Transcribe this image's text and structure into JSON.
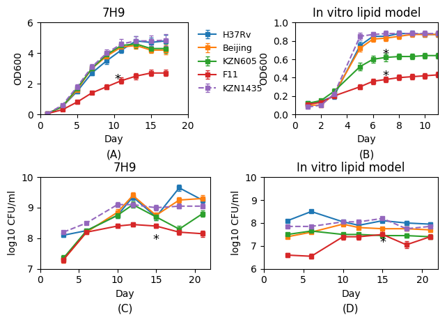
{
  "chart_data": [
    {
      "type": "line",
      "title": "7H9",
      "x_label": "Day",
      "y_label": "OD600",
      "panel_label": "(A)",
      "xlim": [
        0,
        20
      ],
      "ylim": [
        0,
        6
      ],
      "xticks": [
        0,
        5,
        10,
        15,
        20
      ],
      "yticks": [
        0,
        2,
        4,
        6
      ],
      "marker": "square",
      "legend": "upper left",
      "x": [
        1,
        3,
        5,
        7,
        9,
        11,
        13,
        15,
        17
      ],
      "series": [
        {
          "name": "H37Rv",
          "line_style": "solid",
          "values": [
            0.05,
            0.5,
            1.5,
            2.7,
            3.5,
            4.2,
            4.8,
            4.7,
            4.8
          ],
          "errors": [
            0.05,
            0.1,
            0.15,
            0.15,
            0.2,
            0.2,
            0.3,
            0.3,
            0.4
          ]
        },
        {
          "name": "Beijing",
          "line_style": "solid",
          "values": [
            0.05,
            0.5,
            1.6,
            3.0,
            3.8,
            4.4,
            4.5,
            4.2,
            4.2
          ],
          "errors": [
            0.05,
            0.1,
            0.15,
            0.2,
            0.2,
            0.2,
            0.2,
            0.2,
            0.3
          ]
        },
        {
          "name": "KZN605",
          "line_style": "solid",
          "values": [
            0.05,
            0.5,
            1.7,
            3.0,
            3.9,
            4.5,
            4.6,
            4.3,
            4.3
          ],
          "errors": [
            0.05,
            0.1,
            0.15,
            0.2,
            0.2,
            0.25,
            0.25,
            0.25,
            0.3
          ]
        },
        {
          "name": "F11",
          "line_style": "solid",
          "values": [
            0.05,
            0.3,
            0.8,
            1.4,
            1.8,
            2.2,
            2.5,
            2.7,
            2.7
          ],
          "errors": [
            0.05,
            0.08,
            0.1,
            0.1,
            0.15,
            0.2,
            0.2,
            0.2,
            0.2
          ]
        },
        {
          "name": "KZN1435",
          "line_style": "dashed",
          "values": [
            0.05,
            0.6,
            1.8,
            3.1,
            4.0,
            4.6,
            4.8,
            4.8,
            4.85
          ],
          "errors": [
            0.05,
            0.1,
            0.15,
            0.2,
            0.25,
            0.3,
            0.3,
            0.35,
            0.4
          ]
        }
      ],
      "annotations": [
        {
          "text": "*",
          "x": 10.5,
          "y": 2.3
        }
      ]
    },
    {
      "type": "line",
      "title": "In vitro lipid model",
      "x_label": "Day",
      "y_label": "OD600",
      "panel_label": "(B)",
      "xlim": [
        0,
        11
      ],
      "ylim": [
        0.0,
        1.0
      ],
      "xticks": [
        0,
        2,
        4,
        6,
        8,
        10
      ],
      "yticks": [
        0.0,
        0.2,
        0.4,
        0.6,
        0.8,
        1.0
      ],
      "marker": "square",
      "x": [
        1,
        2,
        3,
        5,
        6,
        7,
        8,
        9,
        10,
        11
      ],
      "series": [
        {
          "name": "H37Rv",
          "line_style": "solid",
          "values": [
            0.12,
            0.14,
            0.2,
            0.75,
            0.85,
            0.85,
            0.88,
            0.88,
            0.87,
            0.87
          ],
          "errors": [
            0.02,
            0.02,
            0.03,
            0.04,
            0.03,
            0.03,
            0.03,
            0.03,
            0.03,
            0.03
          ]
        },
        {
          "name": "Beijing",
          "line_style": "solid",
          "values": [
            0.1,
            0.1,
            0.22,
            0.72,
            0.82,
            0.83,
            0.85,
            0.87,
            0.87,
            0.87
          ],
          "errors": [
            0.02,
            0.02,
            0.03,
            0.04,
            0.03,
            0.03,
            0.03,
            0.03,
            0.03,
            0.03
          ]
        },
        {
          "name": "KZN605",
          "line_style": "solid",
          "values": [
            0.12,
            0.15,
            0.25,
            0.52,
            0.6,
            0.62,
            0.63,
            0.63,
            0.64,
            0.64
          ],
          "errors": [
            0.02,
            0.02,
            0.03,
            0.04,
            0.04,
            0.04,
            0.03,
            0.03,
            0.03,
            0.03
          ]
        },
        {
          "name": "F11",
          "line_style": "solid",
          "values": [
            0.11,
            0.13,
            0.2,
            0.3,
            0.36,
            0.38,
            0.4,
            0.41,
            0.42,
            0.43
          ],
          "errors": [
            0.02,
            0.02,
            0.02,
            0.03,
            0.03,
            0.03,
            0.03,
            0.03,
            0.03,
            0.03
          ]
        },
        {
          "name": "KZN1435",
          "line_style": "dashed",
          "values": [
            0.08,
            0.1,
            0.22,
            0.85,
            0.87,
            0.88,
            0.88,
            0.88,
            0.88,
            0.88
          ],
          "errors": [
            0.02,
            0.02,
            0.03,
            0.04,
            0.03,
            0.03,
            0.03,
            0.03,
            0.03,
            0.03
          ]
        }
      ],
      "annotations": [
        {
          "text": "*",
          "x": 7.0,
          "y": 0.65
        },
        {
          "text": "*",
          "x": 7.0,
          "y": 0.42
        }
      ]
    },
    {
      "type": "line",
      "title": "7H9",
      "x_label": "Day",
      "y_label": "log10 CFU/ml",
      "panel_label": "(C)",
      "xlim": [
        0,
        22
      ],
      "ylim": [
        7,
        10
      ],
      "xticks": [
        0,
        5,
        10,
        15,
        20
      ],
      "yticks": [
        7,
        8,
        9,
        10
      ],
      "marker": "square",
      "x": [
        3,
        6,
        10,
        12,
        15,
        18,
        21
      ],
      "series": [
        {
          "name": "H37Rv",
          "line_style": "solid",
          "values": [
            8.1,
            8.25,
            8.75,
            9.35,
            8.7,
            9.65,
            9.25
          ],
          "errors": [
            0.05,
            0.05,
            0.1,
            0.1,
            0.1,
            0.1,
            0.1
          ]
        },
        {
          "name": "Beijing",
          "line_style": "solid",
          "values": [
            7.3,
            8.2,
            8.85,
            9.4,
            8.75,
            9.25,
            9.3
          ],
          "errors": [
            0.1,
            0.05,
            0.1,
            0.1,
            0.1,
            0.1,
            0.1
          ]
        },
        {
          "name": "KZN605",
          "line_style": "solid",
          "values": [
            7.35,
            8.25,
            8.75,
            9.1,
            8.7,
            8.3,
            8.8
          ],
          "errors": [
            0.1,
            0.05,
            0.1,
            0.1,
            0.1,
            0.1,
            0.1
          ]
        },
        {
          "name": "F11",
          "line_style": "solid",
          "values": [
            7.3,
            8.2,
            8.4,
            8.45,
            8.4,
            8.2,
            8.15
          ],
          "errors": [
            0.1,
            0.05,
            0.07,
            0.07,
            0.07,
            0.1,
            0.1
          ]
        },
        {
          "name": "KZN1435",
          "line_style": "dashed",
          "values": [
            8.2,
            8.5,
            9.1,
            9.1,
            9.0,
            9.05,
            9.05
          ],
          "errors": [
            0.05,
            0.05,
            0.08,
            0.08,
            0.08,
            0.08,
            0.08
          ]
        }
      ],
      "annotations": [
        {
          "text": "*",
          "x": 15,
          "y": 7.95
        }
      ]
    },
    {
      "type": "line",
      "title": "In vitro lipid model",
      "x_label": "Day",
      "y_label": "log10 CFU/ml",
      "panel_label": "(D)",
      "xlim": [
        0,
        22
      ],
      "ylim": [
        6,
        10
      ],
      "xticks": [
        0,
        5,
        10,
        15,
        20
      ],
      "yticks": [
        6,
        7,
        8,
        9,
        10
      ],
      "marker": "square",
      "x": [
        3,
        6,
        10,
        12,
        15,
        18,
        21
      ],
      "series": [
        {
          "name": "H37Rv",
          "line_style": "solid",
          "values": [
            8.1,
            8.5,
            8.05,
            7.9,
            8.1,
            8.0,
            7.95
          ],
          "errors": [
            0.05,
            0.05,
            0.08,
            0.08,
            0.08,
            0.08,
            0.08
          ]
        },
        {
          "name": "Beijing",
          "line_style": "solid",
          "values": [
            7.4,
            7.6,
            7.95,
            7.8,
            7.75,
            7.75,
            7.7
          ],
          "errors": [
            0.05,
            0.05,
            0.08,
            0.08,
            0.08,
            0.08,
            0.08
          ]
        },
        {
          "name": "KZN605",
          "line_style": "solid",
          "values": [
            7.5,
            7.65,
            7.5,
            7.5,
            7.45,
            7.45,
            7.4
          ],
          "errors": [
            0.05,
            0.05,
            0.08,
            0.08,
            0.08,
            0.08,
            0.08
          ]
        },
        {
          "name": "F11",
          "line_style": "solid",
          "values": [
            6.6,
            6.55,
            7.4,
            7.4,
            7.5,
            7.05,
            7.4
          ],
          "errors": [
            0.1,
            0.1,
            0.12,
            0.12,
            0.15,
            0.15,
            0.1
          ]
        },
        {
          "name": "KZN1435",
          "line_style": "dashed",
          "values": [
            7.85,
            7.85,
            8.05,
            8.05,
            8.2,
            7.75,
            7.85
          ],
          "errors": [
            0.05,
            0.05,
            0.07,
            0.07,
            0.07,
            0.07,
            0.07
          ]
        }
      ],
      "annotations": [
        {
          "text": "*",
          "x": 15,
          "y": 7.15
        }
      ]
    }
  ]
}
